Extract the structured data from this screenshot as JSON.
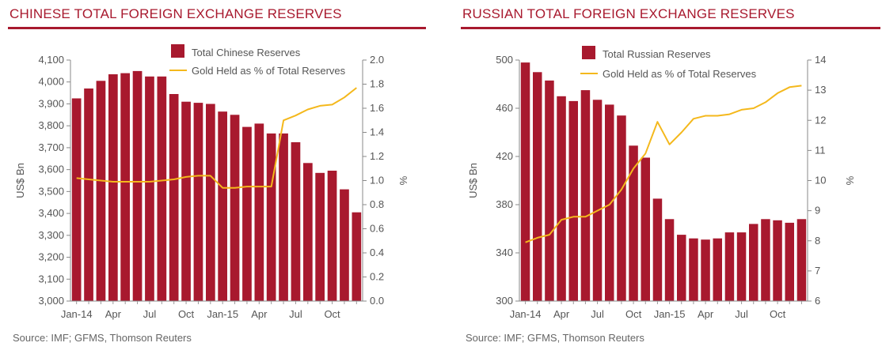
{
  "charts": [
    {
      "title": "CHINESE TOTAL FOREIGN EXCHANGE RESERVES",
      "source": "Source: IMF; GFMS, Thomson Reuters"
    },
    {
      "title": "RUSSIAN TOTAL FOREIGN EXCHANGE RESERVES",
      "source": "Source: IMF; GFMS, Thomson Reuters"
    }
  ],
  "colors": {
    "bar": "#a8192e",
    "line": "#f4b81c",
    "title": "#a8192e"
  },
  "chart_data": [
    {
      "type": "bar",
      "title": "CHINESE TOTAL FOREIGN EXCHANGE RESERVES",
      "ylabel": "US$ Bn",
      "y2label": "%",
      "ylim": [
        3000,
        4100
      ],
      "y2lim": [
        0.0,
        2.0
      ],
      "yticks": [
        "3,000",
        "3,100",
        "3,200",
        "3,300",
        "3,400",
        "3,500",
        "3,600",
        "3,700",
        "3,800",
        "3,900",
        "4,000",
        "4,100"
      ],
      "y2ticks": [
        "0.0",
        "0.2",
        "0.4",
        "0.6",
        "0.8",
        "1.0",
        "1.2",
        "1.4",
        "1.6",
        "1.8",
        "2.0"
      ],
      "categories": [
        "Jan-14",
        "Feb-14",
        "Mar-14",
        "Apr-14",
        "May-14",
        "Jun-14",
        "Jul-14",
        "Aug-14",
        "Sep-14",
        "Oct-14",
        "Nov-14",
        "Dec-14",
        "Jan-15",
        "Feb-15",
        "Mar-15",
        "Apr-15",
        "May-15",
        "Jun-15",
        "Jul-15",
        "Aug-15",
        "Sep-15",
        "Oct-15",
        "Nov-15",
        "Dec-15"
      ],
      "xtick_labels": [
        "Jan-14",
        "Apr",
        "Jul",
        "Oct",
        "Jan-15",
        "Apr",
        "Jul",
        "Oct"
      ],
      "xtick_indices": [
        0,
        3,
        6,
        9,
        12,
        15,
        18,
        21
      ],
      "legend_position": "top-right",
      "series": [
        {
          "name": "Total Chinese Reserves",
          "type": "bar",
          "axis": "left",
          "values": [
            3925,
            3970,
            4005,
            4035,
            4040,
            4050,
            4025,
            4025,
            3945,
            3910,
            3905,
            3900,
            3865,
            3850,
            3795,
            3810,
            3765,
            3765,
            3725,
            3630,
            3585,
            3595,
            3510,
            3405
          ]
        },
        {
          "name": "Gold Held as % of Total Reserves",
          "type": "line",
          "axis": "right",
          "values": [
            1.02,
            1.01,
            1.0,
            0.99,
            0.99,
            0.99,
            0.99,
            1.0,
            1.01,
            1.03,
            1.04,
            1.04,
            0.94,
            0.94,
            0.95,
            0.95,
            0.95,
            1.5,
            1.54,
            1.59,
            1.62,
            1.63,
            1.69,
            1.77
          ]
        }
      ]
    },
    {
      "type": "bar",
      "title": "RUSSIAN TOTAL FOREIGN EXCHANGE RESERVES",
      "ylabel": "US$ Bn",
      "y2label": "%",
      "ylim": [
        300,
        500
      ],
      "y2lim": [
        6,
        14
      ],
      "yticks": [
        "300",
        "340",
        "380",
        "420",
        "460",
        "500"
      ],
      "y2ticks": [
        "6",
        "7",
        "8",
        "9",
        "10",
        "11",
        "12",
        "13",
        "14"
      ],
      "categories": [
        "Jan-14",
        "Feb-14",
        "Mar-14",
        "Apr-14",
        "May-14",
        "Jun-14",
        "Jul-14",
        "Aug-14",
        "Sep-14",
        "Oct-14",
        "Nov-14",
        "Dec-14",
        "Jan-15",
        "Feb-15",
        "Mar-15",
        "Apr-15",
        "May-15",
        "Jun-15",
        "Jul-15",
        "Aug-15",
        "Sep-15",
        "Oct-15",
        "Nov-15",
        "Dec-15"
      ],
      "xtick_labels": [
        "Jan-14",
        "Apr",
        "Jul",
        "Oct",
        "Jan-15",
        "Apr",
        "Jul",
        "Oct"
      ],
      "xtick_indices": [
        0,
        3,
        6,
        9,
        12,
        15,
        18,
        21
      ],
      "legend_position": "top-right",
      "series": [
        {
          "name": "Total Russian Reserves",
          "type": "bar",
          "axis": "left",
          "values": [
            498,
            490,
            483,
            470,
            466,
            475,
            467,
            463,
            454,
            429,
            419,
            385,
            368,
            355,
            352,
            351,
            352,
            357,
            357,
            364,
            368,
            367,
            365,
            368
          ]
        },
        {
          "name": "Gold Held as % of Total Reserves",
          "type": "line",
          "axis": "right",
          "values": [
            7.95,
            8.1,
            8.2,
            8.7,
            8.8,
            8.8,
            9.0,
            9.2,
            9.7,
            10.4,
            10.9,
            11.95,
            11.2,
            11.6,
            12.05,
            12.15,
            12.15,
            12.2,
            12.35,
            12.4,
            12.6,
            12.9,
            13.1,
            13.15
          ]
        }
      ]
    }
  ]
}
